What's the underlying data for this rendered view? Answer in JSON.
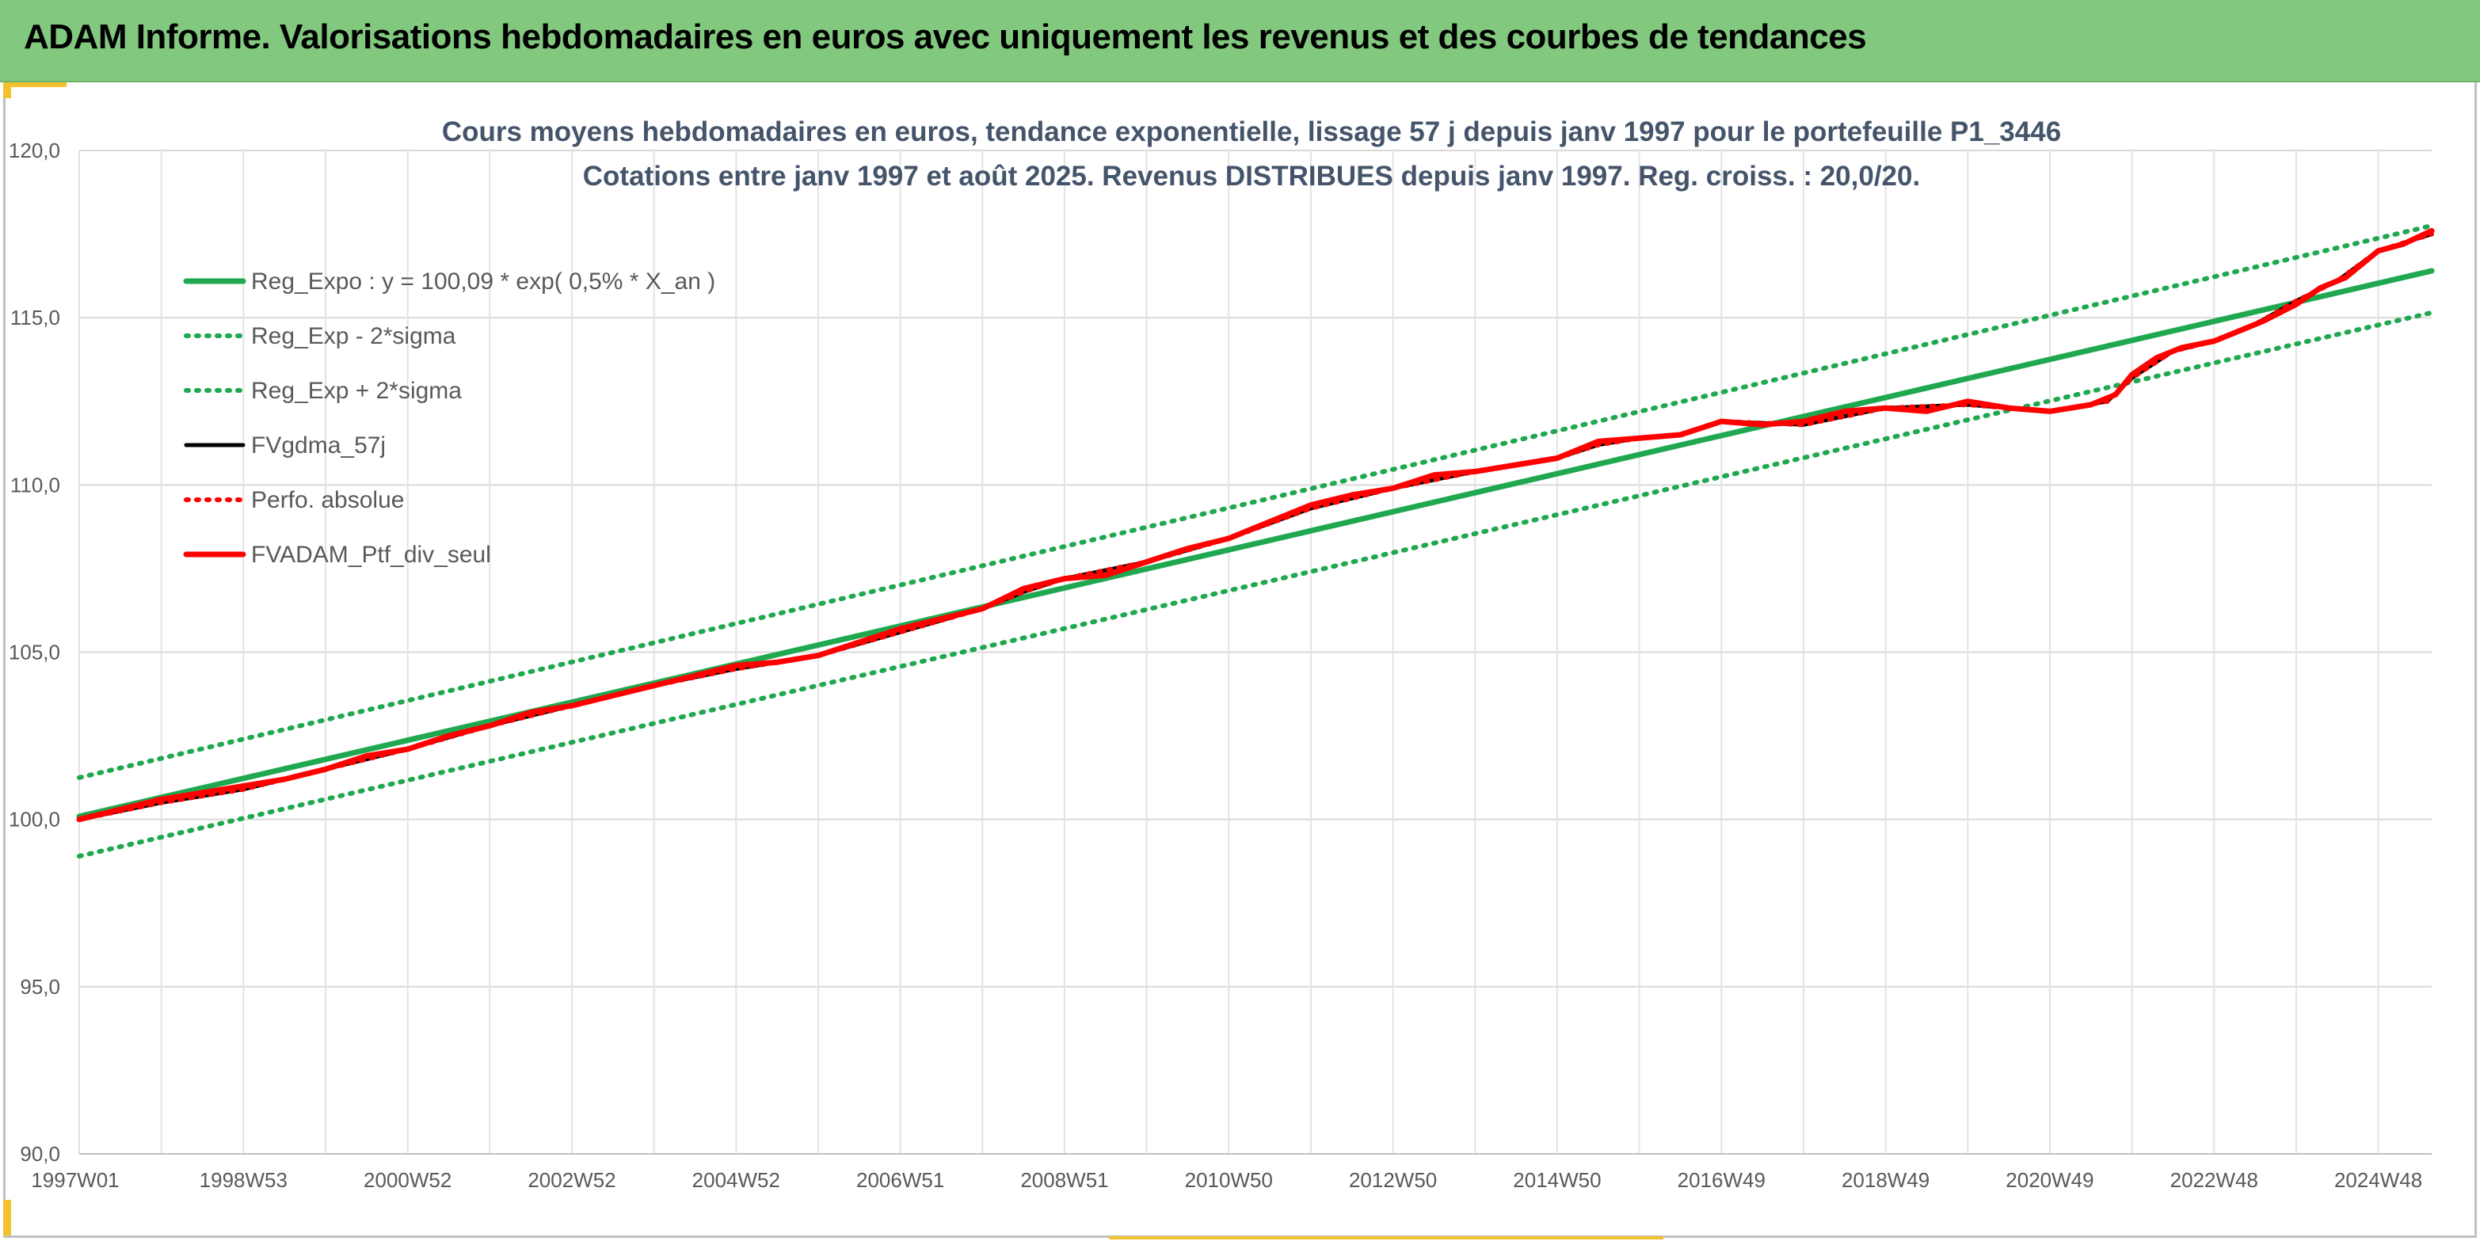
{
  "header": {
    "title": "ADAM Informe. Valorisations hebdomadaires en euros avec uniquement les revenus et des courbes de tendances"
  },
  "colors": {
    "header_bg": "#82c97f",
    "accent": "#f2c12e",
    "reg_green": "#1fa84f",
    "sigma_green": "#1fa84f",
    "smoothed_black": "#000000",
    "perf_red": "#ff0000",
    "portfolio_red": "#ff0000"
  },
  "chart_data": {
    "type": "line",
    "title": "Cours moyens hebdomadaires en euros, tendance exponentielle, lissage 57 j depuis janv 1997 pour le portefeuille P1_3446",
    "subtitle": "Cotations entre janv 1997 et août 2025. Revenus DISTRIBUES depuis janv 1997. Reg. croiss. : 20,0/20.",
    "xlabel": "",
    "ylabel": "",
    "x_range": [
      1997.0,
      2025.65
    ],
    "ylim": [
      90,
      120
    ],
    "y_ticks": [
      "90,0",
      "95,0",
      "100,0",
      "105,0",
      "110,0",
      "115,0",
      "120,0"
    ],
    "y_tick_values": [
      90,
      95,
      100,
      105,
      110,
      115,
      120
    ],
    "x_tick_labels": [
      "1997W01",
      "1998W53",
      "2000W52",
      "2002W52",
      "2004W52",
      "2006W51",
      "2008W51",
      "2010W50",
      "2012W50",
      "2014W50",
      "2016W49",
      "2018W49",
      "2020W49",
      "2022W48",
      "2024W48"
    ],
    "x_tick_values": [
      1997.0,
      1999.0,
      2001.0,
      2003.0,
      2005.0,
      2007.0,
      2009.0,
      2011.0,
      2013.0,
      2015.0,
      2017.0,
      2019.0,
      2021.0,
      2023.0,
      2025.0
    ],
    "grid": true,
    "legend_position": "top-left",
    "series": [
      {
        "name": "Reg_Expo : y = 100,09 * exp( 0,5% *  X_an )",
        "style": "solid-thick",
        "color": "#1fa84f",
        "x": [
          1997.0,
          2025.65
        ],
        "y": [
          100.09,
          116.4
        ]
      },
      {
        "name": "Reg_Exp - 2*sigma",
        "style": "dotted",
        "color": "#1fa84f",
        "x": [
          1997.0,
          2025.65
        ],
        "y": [
          98.9,
          115.15
        ]
      },
      {
        "name": "Reg_Exp + 2*sigma",
        "style": "dotted",
        "color": "#1fa84f",
        "x": [
          1997.0,
          2025.65
        ],
        "y": [
          101.25,
          117.75
        ]
      },
      {
        "name": "FVgdma_57j",
        "style": "solid",
        "color": "#000000",
        "x": [
          1997.0,
          1998.0,
          1999.0,
          2000.0,
          2001.0,
          2002.0,
          2003.0,
          2004.0,
          2005.0,
          2006.0,
          2007.0,
          2008.0,
          2008.5,
          2009.0,
          2010.0,
          2011.0,
          2012.0,
          2013.0,
          2014.0,
          2015.0,
          2015.5,
          2016.0,
          2016.5,
          2017.0,
          2018.0,
          2019.0,
          2020.0,
          2021.0,
          2021.7,
          2022.0,
          2022.5,
          2023.0,
          2023.5,
          2024.0,
          2024.5,
          2025.0,
          2025.65
        ],
        "y": [
          100.0,
          100.5,
          100.9,
          101.5,
          102.1,
          102.8,
          103.4,
          104.0,
          104.5,
          104.9,
          105.6,
          106.3,
          106.8,
          107.2,
          107.7,
          108.4,
          109.3,
          109.9,
          110.4,
          110.8,
          111.2,
          111.4,
          111.5,
          111.9,
          111.8,
          112.3,
          112.4,
          112.2,
          112.5,
          113.2,
          114.0,
          114.3,
          114.8,
          115.5,
          116.1,
          117.0,
          117.5
        ]
      },
      {
        "name": "Perfo. absolue",
        "style": "dotted",
        "color": "#ff0000",
        "x": [
          1997.0,
          1998.0,
          1999.0,
          2000.0,
          2001.0,
          2002.0,
          2003.0,
          2004.0,
          2005.0,
          2006.0,
          2007.0,
          2008.0,
          2008.5,
          2009.0,
          2010.0,
          2011.0,
          2012.0,
          2013.0,
          2014.0,
          2015.0,
          2015.5,
          2016.0,
          2016.5,
          2017.0,
          2018.0,
          2019.0,
          2020.0,
          2021.0,
          2021.7,
          2022.0,
          2022.5,
          2023.0,
          2023.5,
          2024.0,
          2024.5,
          2025.0,
          2025.65
        ],
        "y": [
          100.0,
          100.5,
          100.9,
          101.5,
          102.1,
          102.8,
          103.4,
          104.0,
          104.5,
          104.9,
          105.6,
          106.3,
          106.8,
          107.2,
          107.7,
          108.4,
          109.3,
          109.9,
          110.4,
          110.8,
          111.2,
          111.4,
          111.5,
          111.9,
          111.8,
          112.3,
          112.4,
          112.2,
          112.5,
          113.2,
          114.0,
          114.3,
          114.8,
          115.5,
          116.1,
          117.0,
          117.5
        ]
      },
      {
        "name": "FVADAM_Ptf_div_seul",
        "style": "solid-thick",
        "color": "#ff0000",
        "x": [
          1997.0,
          1997.5,
          1998.0,
          1998.5,
          1999.0,
          1999.5,
          2000.0,
          2000.5,
          2001.0,
          2001.5,
          2002.0,
          2002.5,
          2003.0,
          2003.5,
          2004.0,
          2004.5,
          2005.0,
          2005.5,
          2006.0,
          2006.5,
          2007.0,
          2007.5,
          2008.0,
          2008.5,
          2009.0,
          2009.5,
          2010.0,
          2010.5,
          2011.0,
          2011.5,
          2012.0,
          2012.5,
          2013.0,
          2013.5,
          2014.0,
          2014.5,
          2015.0,
          2015.5,
          2016.0,
          2016.5,
          2017.0,
          2017.5,
          2018.0,
          2018.5,
          2019.0,
          2019.5,
          2020.0,
          2020.5,
          2021.0,
          2021.5,
          2021.8,
          2022.0,
          2022.3,
          2022.6,
          2023.0,
          2023.3,
          2023.6,
          2024.0,
          2024.3,
          2024.6,
          2025.0,
          2025.3,
          2025.65
        ],
        "y": [
          100.0,
          100.3,
          100.6,
          100.8,
          101.0,
          101.2,
          101.5,
          101.9,
          102.1,
          102.5,
          102.8,
          103.2,
          103.4,
          103.7,
          104.0,
          104.3,
          104.6,
          104.7,
          104.9,
          105.3,
          105.7,
          106.0,
          106.3,
          106.9,
          107.2,
          107.3,
          107.7,
          108.1,
          108.4,
          108.9,
          109.4,
          109.7,
          109.9,
          110.3,
          110.4,
          110.6,
          110.8,
          111.3,
          111.4,
          111.5,
          111.9,
          111.8,
          111.9,
          112.2,
          112.3,
          112.2,
          112.5,
          112.3,
          112.2,
          112.4,
          112.7,
          113.3,
          113.8,
          114.1,
          114.3,
          114.6,
          114.9,
          115.4,
          115.9,
          116.2,
          117.0,
          117.2,
          117.6
        ]
      }
    ]
  }
}
